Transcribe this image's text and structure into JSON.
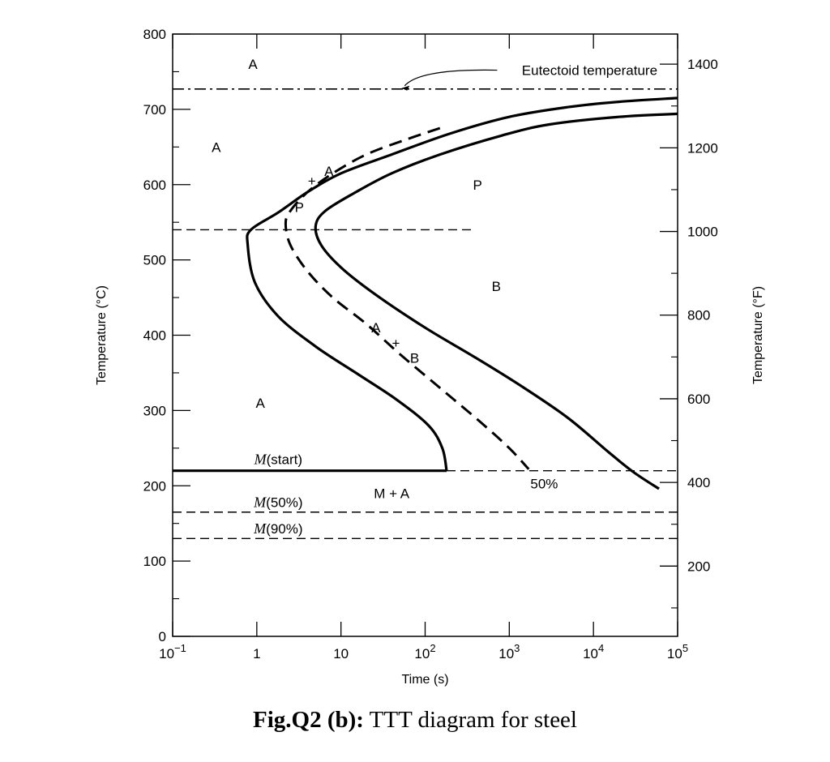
{
  "caption": {
    "label": "Fig.Q2 (b):",
    "text": " TTT diagram for steel"
  },
  "chart_data": {
    "type": "line",
    "title": "",
    "xlabel": "Time (s)",
    "ylabel": "Temperature (°C)",
    "y2label": "Temperature (°F)",
    "x_scale": "log",
    "xlim": [
      0.1,
      100000
    ],
    "ylim": [
      0,
      800
    ],
    "y2lim": [
      32,
      1472
    ],
    "x_ticks": [
      {
        "value": 0.1,
        "base": "10",
        "exp": "−1"
      },
      {
        "value": 1,
        "base": "1",
        "exp": ""
      },
      {
        "value": 10,
        "base": "10",
        "exp": ""
      },
      {
        "value": 100,
        "base": "10",
        "exp": "2"
      },
      {
        "value": 1000,
        "base": "10",
        "exp": "3"
      },
      {
        "value": 10000,
        "base": "10",
        "exp": "4"
      },
      {
        "value": 100000,
        "base": "10",
        "exp": "5"
      }
    ],
    "y_ticks": [
      "0",
      "100",
      "200",
      "300",
      "400",
      "500",
      "600",
      "700",
      "800"
    ],
    "y2_ticks": [
      "200",
      "400",
      "600",
      "800",
      "1000",
      "1200",
      "1400"
    ],
    "reference_lines": [
      {
        "name": "eutectoid",
        "y": 727,
        "style": "dash-dot"
      },
      {
        "name": "nose",
        "y": 540,
        "x_max": 400,
        "style": "dashed"
      },
      {
        "name": "m-start",
        "y": 220,
        "style": "solid-then-dashed",
        "solid_to_x": 180
      },
      {
        "name": "m-50",
        "y": 165,
        "style": "dashed"
      },
      {
        "name": "m-90",
        "y": 130,
        "style": "dashed"
      }
    ],
    "curves": [
      {
        "name": "transformation-start",
        "style": "solid",
        "points": [
          [
            100000,
            715
          ],
          [
            20000,
            710
          ],
          [
            5000,
            703
          ],
          [
            1000,
            690
          ],
          [
            200,
            668
          ],
          [
            40,
            640
          ],
          [
            10,
            615
          ],
          [
            4,
            590
          ],
          [
            1.8,
            563
          ],
          [
            0.85,
            540
          ],
          [
            0.78,
            520
          ],
          [
            0.95,
            470
          ],
          [
            1.8,
            425
          ],
          [
            5,
            385
          ],
          [
            15,
            350
          ],
          [
            45,
            315
          ],
          [
            110,
            280
          ],
          [
            160,
            250
          ],
          [
            180,
            220
          ]
        ]
      },
      {
        "name": "transformation-50-percent",
        "style": "dashed",
        "points": [
          [
            150,
            675
          ],
          [
            60,
            660
          ],
          [
            20,
            640
          ],
          [
            8,
            615
          ],
          [
            4,
            590
          ],
          [
            2.5,
            565
          ],
          [
            2.2,
            548
          ],
          [
            2.5,
            520
          ],
          [
            4,
            485
          ],
          [
            8,
            450
          ],
          [
            20,
            415
          ],
          [
            50,
            375
          ],
          [
            150,
            330
          ],
          [
            450,
            285
          ],
          [
            1000,
            250
          ],
          [
            1700,
            222
          ]
        ]
      },
      {
        "name": "transformation-finish",
        "style": "solid",
        "points": [
          [
            100000,
            694
          ],
          [
            20000,
            690
          ],
          [
            3000,
            680
          ],
          [
            800,
            665
          ],
          [
            150,
            640
          ],
          [
            40,
            615
          ],
          [
            15,
            590
          ],
          [
            6.5,
            565
          ],
          [
            5,
            545
          ],
          [
            5.8,
            520
          ],
          [
            10,
            490
          ],
          [
            25,
            455
          ],
          [
            100,
            410
          ],
          [
            400,
            370
          ],
          [
            1500,
            330
          ],
          [
            5000,
            290
          ],
          [
            15000,
            245
          ],
          [
            30000,
            218
          ],
          [
            60000,
            196
          ]
        ]
      }
    ],
    "annotations": [
      {
        "text": "A",
        "x": 0.9,
        "y": 760
      },
      {
        "text": "A",
        "x": 0.33,
        "y": 650
      },
      {
        "text": "A",
        "x": 1.1,
        "y": 310
      },
      {
        "text": "P",
        "x": 420,
        "y": 600
      },
      {
        "text": "B",
        "x": 700,
        "y": 465
      },
      {
        "text": "P",
        "x": 3.2,
        "y": 570
      },
      {
        "text": "+",
        "x": 4.5,
        "y": 605
      },
      {
        "text": "A",
        "x": 7.2,
        "y": 618
      },
      {
        "text": "A",
        "x": 26,
        "y": 410
      },
      {
        "text": "+",
        "x": 45,
        "y": 390
      },
      {
        "text": "B",
        "x": 75,
        "y": 370
      },
      {
        "text": "M + A",
        "x": 40,
        "y": 190
      },
      {
        "text": "50%",
        "x": 2600,
        "y": 203
      },
      {
        "text": "Eutectoid temperature",
        "x": 9000,
        "y": 752,
        "arrow_to": [
          50,
          727
        ]
      }
    ],
    "m_labels": [
      {
        "italic": "M",
        "rest": "(start)",
        "x": 1.8,
        "y": 235
      },
      {
        "italic": "M",
        "rest": "(50%)",
        "x": 1.8,
        "y": 178
      },
      {
        "italic": "M",
        "rest": "(90%)",
        "x": 1.8,
        "y": 143
      }
    ]
  }
}
